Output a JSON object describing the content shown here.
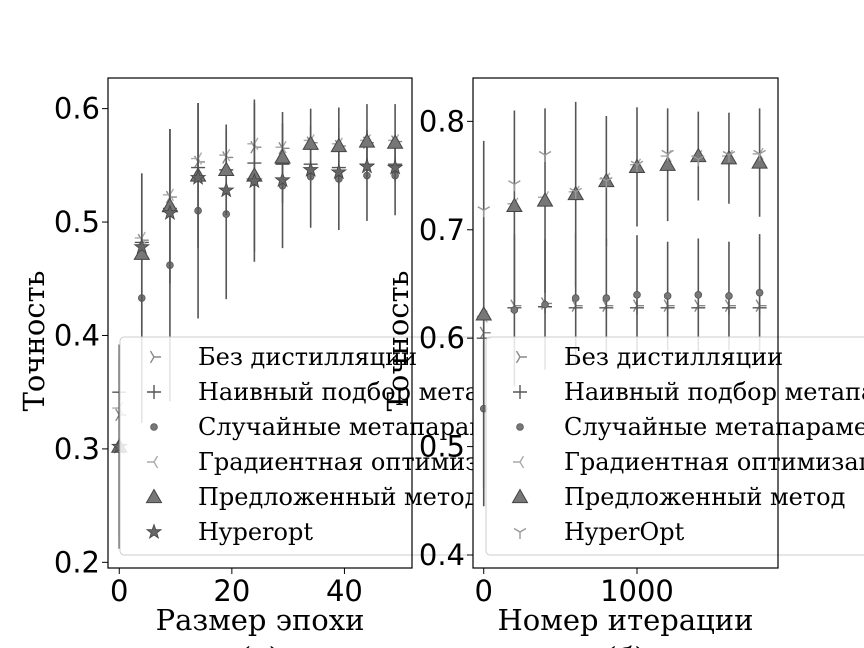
{
  "chart_data": [
    {
      "type": "scatter",
      "xlabel": "Размер эпохи",
      "ylabel": "Точность",
      "sublabel": "(а)",
      "xlim": [
        -2,
        52
      ],
      "ylim": [
        0.195,
        0.627
      ],
      "xticks": [
        0,
        20,
        40
      ],
      "yticks": [
        0.2,
        0.3,
        0.4,
        0.5,
        0.6
      ],
      "legend": {
        "placement": "lower-right"
      },
      "series": [
        {
          "name": "Без дистилляции",
          "marker": "tri-right",
          "color": "#888888",
          "x": [
            0,
            4,
            9,
            14,
            19,
            24,
            29,
            34,
            39,
            44,
            49
          ],
          "y": [
            0.33,
            0.484,
            0.522,
            0.553,
            0.557,
            0.566,
            0.565,
            0.57,
            0.567,
            0.57,
            0.571
          ]
        },
        {
          "name": "Наивный подбор метапараметров",
          "marker": "plus",
          "color": "#555555",
          "x": [
            0,
            4,
            9,
            14,
            19,
            24,
            29,
            34,
            39,
            44,
            49
          ],
          "y": [
            0.35,
            0.482,
            0.512,
            0.548,
            0.546,
            0.552,
            0.551,
            0.551,
            0.548,
            0.551,
            0.551
          ]
        },
        {
          "name": "Случайные метапараметры",
          "marker": "circle",
          "color": "#777777",
          "x": [
            0,
            4,
            9,
            14,
            19,
            24,
            29,
            34,
            39,
            44,
            49
          ],
          "y": [
            0.302,
            0.433,
            0.462,
            0.51,
            0.507,
            0.535,
            0.532,
            0.54,
            0.538,
            0.541,
            0.541
          ],
          "err": [
            0.08,
            0.11,
            0.12,
            0.095,
            0.075,
            0.07,
            0.055,
            0.045,
            0.045,
            0.04,
            0.035
          ]
        },
        {
          "name": "Градиентная оптимизация",
          "marker": "tri-left",
          "color": "#aaaaaa",
          "x": [
            0,
            4,
            9,
            14,
            19,
            24,
            29,
            34,
            39,
            44,
            49
          ],
          "y": [
            0.336,
            0.486,
            0.524,
            0.556,
            0.559,
            0.569,
            0.566,
            0.572,
            0.569,
            0.572,
            0.572
          ]
        },
        {
          "name": "Предложенный метод",
          "marker": "triangle",
          "color": "#777777",
          "x": [
            0,
            4,
            9,
            14,
            19,
            24,
            29,
            34,
            39,
            44,
            49
          ],
          "y": [
            0.302,
            0.472,
            0.514,
            0.541,
            0.546,
            0.541,
            0.557,
            0.569,
            0.567,
            0.571,
            0.57
          ],
          "err": [
            0.09,
            0.07,
            0.068,
            0.064,
            0.04,
            0.067,
            0.04,
            0.031,
            0.034,
            0.033,
            0.034
          ]
        },
        {
          "name": "Hyperopt",
          "marker": "star",
          "color": "#666666",
          "x": [
            0,
            4,
            9,
            14,
            19,
            24,
            29,
            34,
            39,
            44,
            49
          ],
          "y": [
            0.302,
            0.478,
            0.508,
            0.539,
            0.528,
            0.536,
            0.537,
            0.546,
            0.544,
            0.549,
            0.548
          ]
        }
      ]
    },
    {
      "type": "scatter",
      "xlabel": "Номер итерации",
      "ylabel": "Точность",
      "sublabel": "(б)",
      "xlim": [
        -70,
        1920
      ],
      "ylim": [
        0.388,
        0.84
      ],
      "xticks": [
        0,
        1000
      ],
      "yticks": [
        0.4,
        0.5,
        0.6,
        0.7,
        0.8
      ],
      "legend": {
        "placement": "lower-right"
      },
      "series": [
        {
          "name": "Без дистилляции",
          "marker": "tri-right",
          "color": "#888888",
          "x": [
            0,
            200,
            400,
            600,
            800,
            1000,
            1200,
            1400,
            1600,
            1800
          ],
          "y": [
            0.605,
            0.63,
            0.632,
            0.63,
            0.63,
            0.63,
            0.63,
            0.63,
            0.63,
            0.63
          ]
        },
        {
          "name": "Наивный подбор метапараметров",
          "marker": "plus",
          "color": "#555555",
          "x": [
            0,
            200,
            400,
            600,
            800,
            1000,
            1200,
            1400,
            1600,
            1800
          ],
          "y": [
            0.6,
            0.628,
            0.629,
            0.628,
            0.628,
            0.628,
            0.628,
            0.628,
            0.628,
            0.628
          ]
        },
        {
          "name": "Случайные метапараметры",
          "marker": "circle",
          "color": "#777777",
          "x": [
            0,
            200,
            400,
            600,
            800,
            1000,
            1200,
            1400,
            1600,
            1800
          ],
          "y": [
            0.535,
            0.626,
            0.631,
            0.637,
            0.637,
            0.64,
            0.639,
            0.64,
            0.639,
            0.642
          ],
          "err": [
            0.09,
            0.07,
            0.06,
            0.06,
            0.055,
            0.055,
            0.05,
            0.052,
            0.05,
            0.054
          ]
        },
        {
          "name": "Градиентная оптимизация",
          "marker": "tri-left",
          "color": "#aaaaaa",
          "x": [
            0,
            200,
            400,
            600,
            800,
            1000,
            1200,
            1400,
            1600,
            1800
          ],
          "y": [
            0.62,
            0.724,
            0.73,
            0.735,
            0.747,
            0.76,
            0.768,
            0.768,
            0.768,
            0.77
          ]
        },
        {
          "name": "Предложенный метод",
          "marker": "triangle",
          "color": "#777777",
          "x": [
            0,
            200,
            400,
            600,
            800,
            1000,
            1200,
            1400,
            1600,
            1800
          ],
          "y": [
            0.622,
            0.722,
            0.727,
            0.733,
            0.745,
            0.758,
            0.76,
            0.768,
            0.766,
            0.762
          ],
          "err": [
            0.16,
            0.088,
            0.085,
            0.085,
            0.06,
            0.055,
            0.052,
            0.041,
            0.042,
            0.05
          ]
        },
        {
          "name": "HyperOpt",
          "marker": "tri-down",
          "color": "#999999",
          "x": [
            0,
            200,
            400,
            600,
            800,
            1000,
            1200,
            1400,
            1600,
            1800
          ],
          "y": [
            0.718,
            0.742,
            0.769,
            0.735,
            0.745,
            0.76,
            0.77,
            0.765,
            0.769,
            0.77
          ]
        }
      ]
    }
  ]
}
